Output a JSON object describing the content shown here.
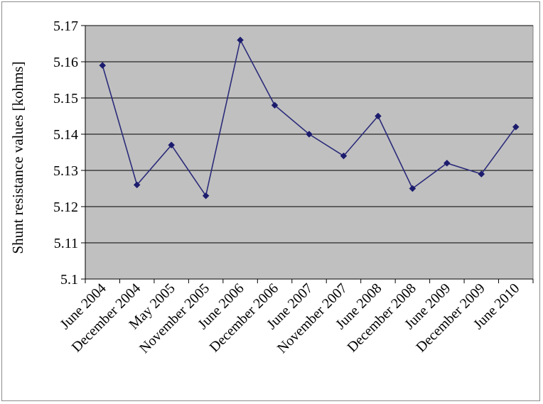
{
  "chart_data": {
    "type": "line",
    "title": "",
    "xlabel": "",
    "ylabel": "Shunt resistance values [kohms]",
    "categories": [
      "June 2004",
      "December 2004",
      "May 2005",
      "November 2005",
      "June 2006",
      "December 2006",
      "June 2007",
      "November 2007",
      "June 2008",
      "December 2008",
      "June 2009",
      "December 2009",
      "June 2010"
    ],
    "series": [
      {
        "values": [
          5.159,
          5.126,
          5.137,
          5.123,
          5.166,
          5.148,
          5.14,
          5.134,
          5.145,
          5.125,
          5.132,
          5.129,
          5.142
        ]
      }
    ],
    "yticks": [
      "5.1",
      "5.11",
      "5.12",
      "5.13",
      "5.14",
      "5.15",
      "5.16",
      "5.17"
    ],
    "ylim": [
      5.1,
      5.17
    ],
    "grid": true,
    "legend": "none",
    "colors": {
      "plot_background": "#c0c0c0",
      "line": "#2b2b7a",
      "marker": "#1c1c6e",
      "gridline": "#000000"
    }
  }
}
